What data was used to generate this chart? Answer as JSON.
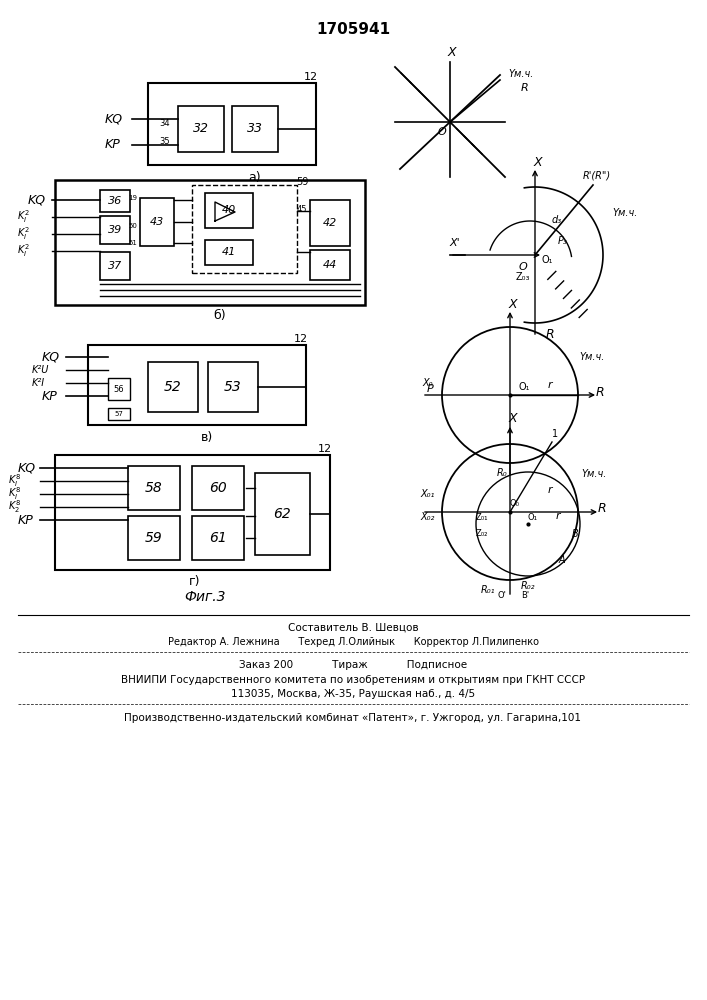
{
  "title": "1705941",
  "bg_color": "#ffffff",
  "fig_label": "Фиг.3",
  "footer": {
    "line1": "Составитель В. Шевцов",
    "line2": "Редактор А. Лежнина      Техред Л.Олийнык      Корректор Л.Пилипенко",
    "line3": "Заказ 200            Тираж            Подписное",
    "line4": "ВНИИПИ Государственного комитета по изобретениям и открытиям при ГКНТ СССР",
    "line5": "113035, Москва, Ж-35, Раушская наб., д. 4/5",
    "line6": "Производственно-издательский комбинат «Патент», г. Ужгород, ул. Гагарина,101"
  }
}
